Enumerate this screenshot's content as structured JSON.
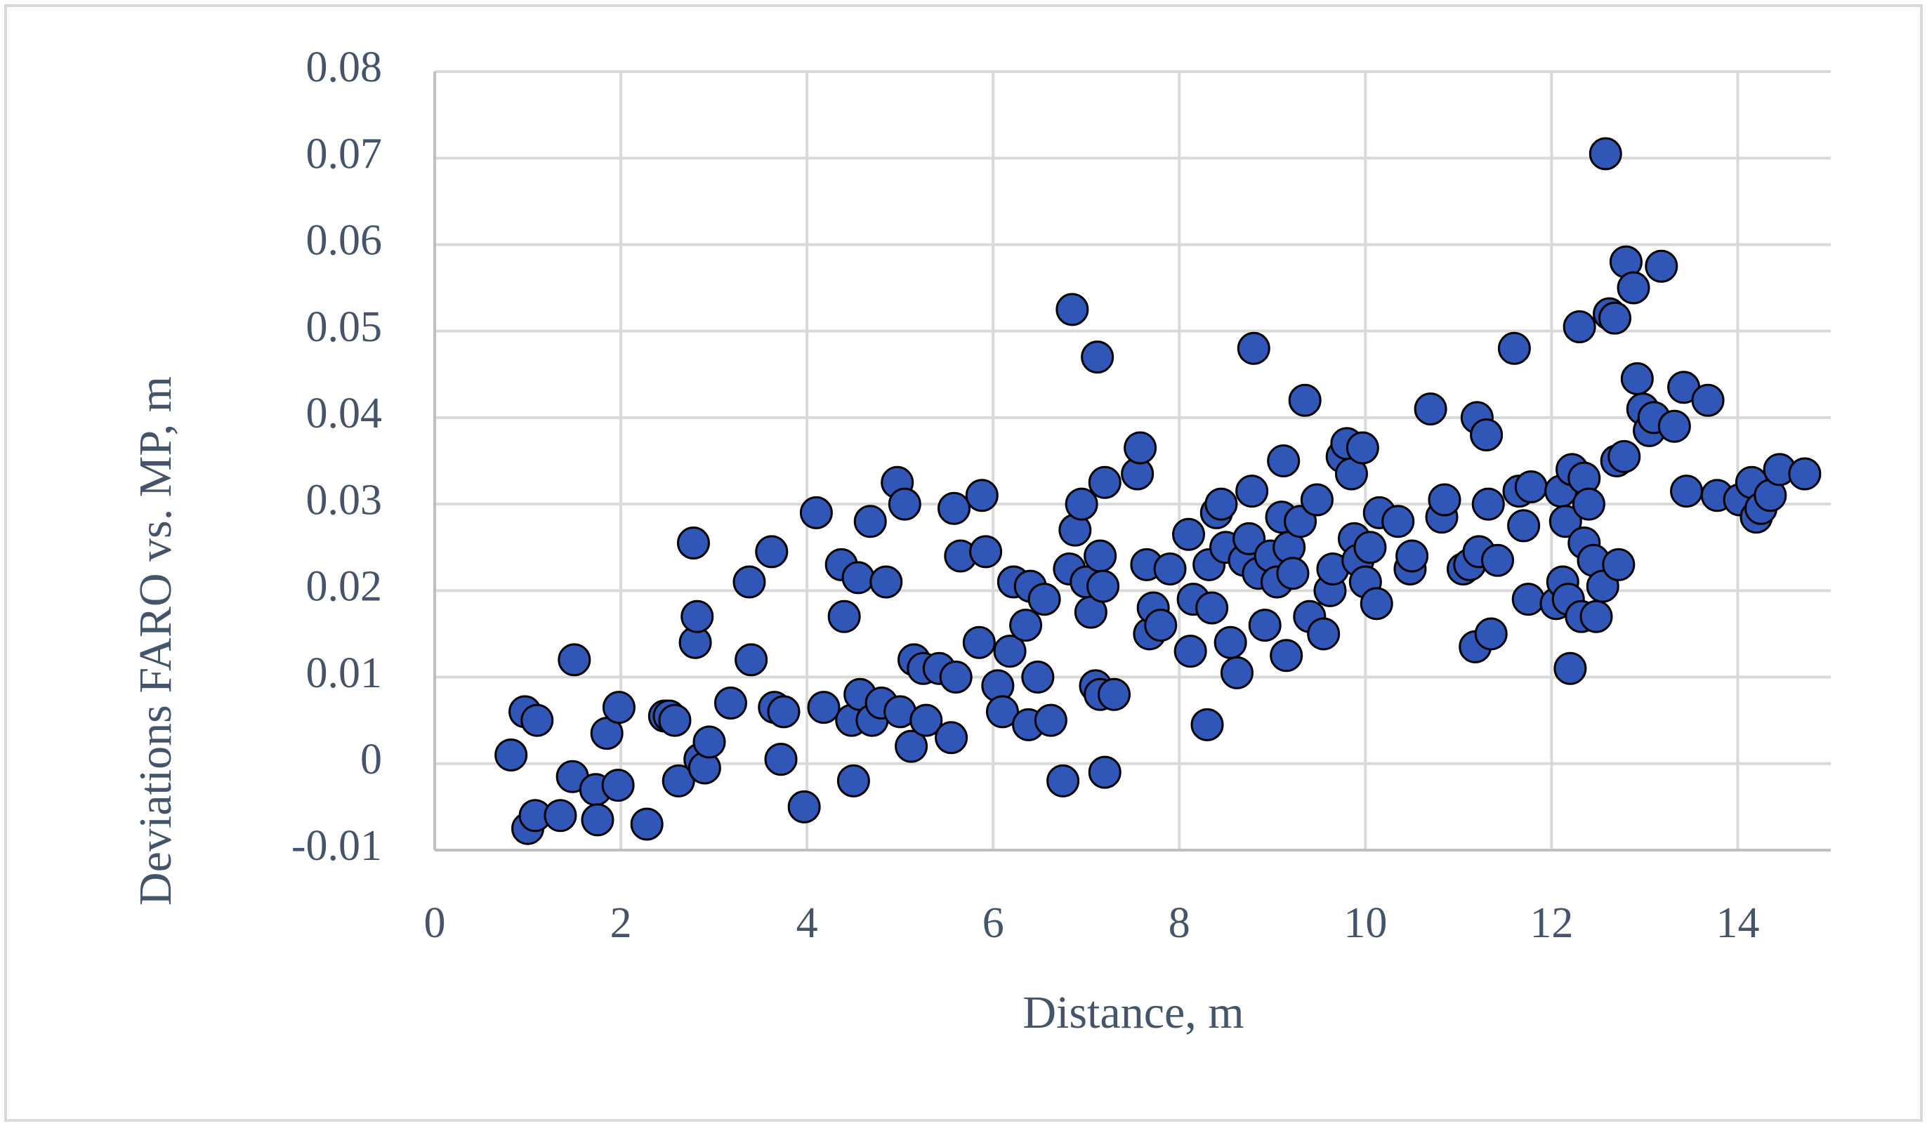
{
  "chart_data": {
    "type": "scatter",
    "x_label": "Distance, m",
    "y_label": "Deviations FARO vs. MP, m",
    "color": "#3057b8",
    "grid": true,
    "xlim": [
      0,
      15
    ],
    "ylim": [
      -0.01,
      0.08
    ],
    "xticks": [
      0,
      2,
      4,
      6,
      8,
      10,
      12,
      14
    ],
    "yticks": [
      -0.01,
      0,
      0.01,
      0.02,
      0.03,
      0.04,
      0.05,
      0.06,
      0.07,
      0.08
    ],
    "x": [
      0.82,
      0.97,
      1.0,
      1.08,
      1.1,
      1.35,
      1.48,
      1.5,
      1.73,
      1.75,
      1.85,
      1.97,
      1.98,
      2.28,
      2.47,
      2.52,
      2.58,
      2.62,
      2.78,
      2.8,
      2.82,
      2.85,
      2.9,
      2.95,
      3.18,
      3.38,
      3.4,
      3.62,
      3.65,
      3.72,
      3.75,
      3.97,
      4.1,
      4.18,
      4.37,
      4.4,
      4.48,
      4.5,
      4.55,
      4.57,
      4.68,
      4.7,
      4.8,
      4.85,
      4.97,
      5.05,
      5.0,
      5.12,
      5.15,
      5.25,
      5.28,
      5.42,
      5.55,
      5.58,
      5.6,
      5.65,
      5.85,
      5.88,
      5.92,
      6.05,
      6.1,
      6.18,
      6.22,
      6.35,
      6.38,
      6.4,
      6.48,
      6.55,
      6.62,
      6.75,
      6.82,
      6.85,
      6.88,
      6.95,
      7.0,
      7.05,
      7.1,
      7.12,
      7.15,
      7.15,
      7.18,
      7.2,
      7.2,
      7.3,
      7.55,
      7.58,
      7.65,
      7.68,
      7.72,
      7.8,
      7.9,
      8.1,
      8.12,
      8.15,
      8.3,
      8.32,
      8.35,
      8.4,
      8.45,
      8.5,
      8.55,
      8.62,
      8.7,
      8.75,
      8.78,
      8.8,
      8.85,
      8.92,
      8.98,
      9.05,
      9.1,
      9.12,
      9.15,
      9.18,
      9.22,
      9.3,
      9.35,
      9.4,
      9.48,
      9.55,
      9.62,
      9.65,
      9.75,
      9.8,
      9.85,
      9.88,
      9.92,
      9.97,
      10.0,
      10.05,
      10.12,
      10.15,
      10.35,
      10.48,
      10.5,
      10.7,
      10.82,
      10.85,
      11.05,
      11.12,
      11.18,
      11.2,
      11.22,
      11.3,
      11.32,
      11.35,
      11.42,
      11.6,
      11.65,
      11.7,
      11.75,
      11.78,
      12.05,
      12.1,
      12.12,
      12.15,
      12.18,
      12.2,
      12.22,
      12.3,
      12.32,
      12.35,
      12.35,
      12.4,
      12.45,
      12.48,
      12.55,
      12.58,
      12.62,
      12.68,
      12.7,
      12.72,
      12.78,
      12.8,
      12.88,
      12.92,
      12.98,
      13.05,
      13.1,
      13.18,
      13.32,
      13.42,
      13.45,
      13.68,
      13.78,
      14.02,
      14.15,
      14.2,
      14.25,
      14.35,
      14.45,
      14.72
    ],
    "values": [
      0.001,
      0.006,
      -0.0075,
      -0.006,
      0.005,
      -0.006,
      -0.0015,
      0.012,
      -0.003,
      -0.0065,
      0.0035,
      -0.0025,
      0.0065,
      -0.007,
      0.0055,
      0.0055,
      0.005,
      -0.002,
      0.0255,
      0.014,
      0.017,
      0.0005,
      -0.0005,
      0.0025,
      0.007,
      0.021,
      0.012,
      0.0245,
      0.0065,
      0.0005,
      0.006,
      -0.005,
      0.029,
      0.0065,
      0.023,
      0.017,
      0.005,
      -0.002,
      0.0215,
      0.008,
      0.028,
      0.005,
      0.007,
      0.021,
      0.0325,
      0.03,
      0.006,
      0.002,
      0.012,
      0.011,
      0.005,
      0.011,
      0.003,
      0.0295,
      0.01,
      0.024,
      0.014,
      0.031,
      0.0245,
      0.009,
      0.006,
      0.013,
      0.021,
      0.016,
      0.0045,
      0.0205,
      0.01,
      0.019,
      0.005,
      -0.002,
      0.0225,
      0.0525,
      0.027,
      0.03,
      0.021,
      0.0175,
      0.009,
      0.047,
      0.024,
      0.008,
      0.0205,
      -0.001,
      0.0325,
      0.008,
      0.0335,
      0.0365,
      0.023,
      0.015,
      0.018,
      0.016,
      0.0225,
      0.0265,
      0.013,
      0.019,
      0.0045,
      0.023,
      0.018,
      0.029,
      0.03,
      0.025,
      0.014,
      0.0105,
      0.0235,
      0.026,
      0.0315,
      0.048,
      0.022,
      0.016,
      0.024,
      0.021,
      0.0285,
      0.035,
      0.0125,
      0.025,
      0.022,
      0.028,
      0.042,
      0.017,
      0.0305,
      0.015,
      0.02,
      0.0225,
      0.0355,
      0.037,
      0.0335,
      0.026,
      0.0235,
      0.0365,
      0.021,
      0.025,
      0.0185,
      0.029,
      0.028,
      0.0225,
      0.024,
      0.041,
      0.0285,
      0.0305,
      0.0225,
      0.023,
      0.0135,
      0.04,
      0.0245,
      0.038,
      0.03,
      0.015,
      0.0235,
      0.048,
      0.0315,
      0.0275,
      0.019,
      0.032,
      0.0185,
      0.0315,
      0.021,
      0.028,
      0.019,
      0.011,
      0.034,
      0.0505,
      0.017,
      0.0255,
      0.033,
      0.03,
      0.0235,
      0.017,
      0.0205,
      0.0705,
      0.052,
      0.0515,
      0.035,
      0.023,
      0.0355,
      0.058,
      0.055,
      0.0445,
      0.041,
      0.0385,
      0.04,
      0.0575,
      0.039,
      0.0435,
      0.0315,
      0.042,
      0.031,
      0.0305,
      0.0325,
      0.0285,
      0.0295,
      0.031,
      0.034,
      0.0335
    ]
  }
}
